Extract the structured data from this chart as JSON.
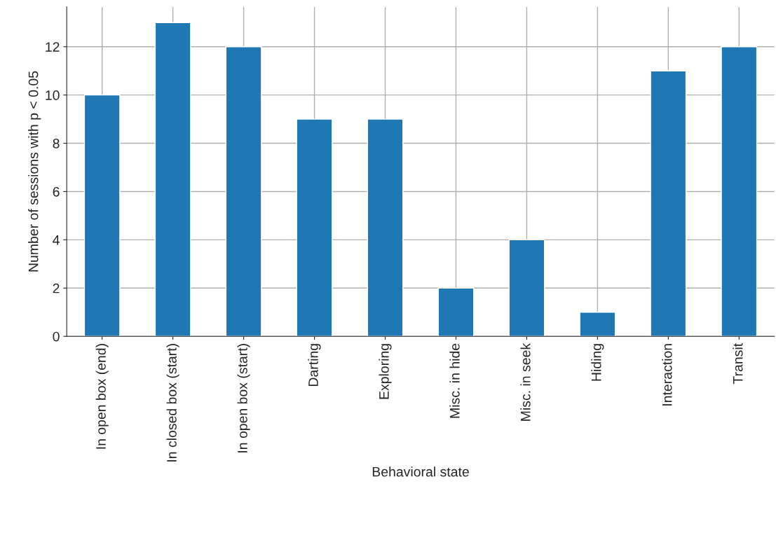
{
  "chart_data": {
    "type": "bar",
    "xlabel": "Behavioral state",
    "ylabel": "Number of sessions with p < 0.05",
    "categories": [
      "In open box (end)",
      "In closed box (start)",
      "In open box (start)",
      "Darting",
      "Exploring",
      "Misc. in hide",
      "Misc. in seek",
      "Hiding",
      "Interaction",
      "Transit"
    ],
    "values": [
      10,
      13,
      12,
      9,
      9,
      2,
      4,
      1,
      11,
      12
    ],
    "color": "#1f77b4",
    "ylim": [
      0,
      13.65
    ],
    "yticks": [
      0,
      2,
      4,
      6,
      8,
      10,
      12
    ],
    "grid": true,
    "legend": false
  }
}
